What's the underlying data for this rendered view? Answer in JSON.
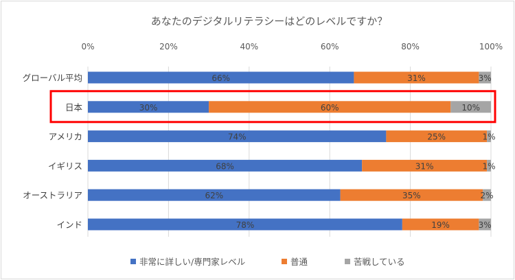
{
  "chart_data": {
    "type": "bar",
    "orientation": "horizontal",
    "stacked": "percent",
    "title": "あなたのデジタルリテラシーはどのレベルですか？",
    "categories": [
      "グローバル平均",
      "日本",
      "アメリカ",
      "イギリス",
      "オーストラリア",
      "インド"
    ],
    "series": [
      {
        "name": "非常に詳しい/専門家レベル",
        "color": "#4472c4",
        "values": [
          66,
          30,
          74,
          68,
          62,
          78
        ]
      },
      {
        "name": "普通",
        "color": "#ed7d31",
        "values": [
          31,
          60,
          25,
          31,
          35,
          19
        ]
      },
      {
        "name": "苦戦している",
        "color": "#a5a5a5",
        "values": [
          3,
          10,
          1,
          1,
          2,
          3
        ]
      }
    ],
    "x_ticks": [
      "0%",
      "20%",
      "40%",
      "60%",
      "80%",
      "100%"
    ],
    "xlim": [
      0,
      100
    ],
    "grid": true,
    "legend": "bottom",
    "highlighted_category": "日本",
    "highlight_color": "#ff0000"
  }
}
